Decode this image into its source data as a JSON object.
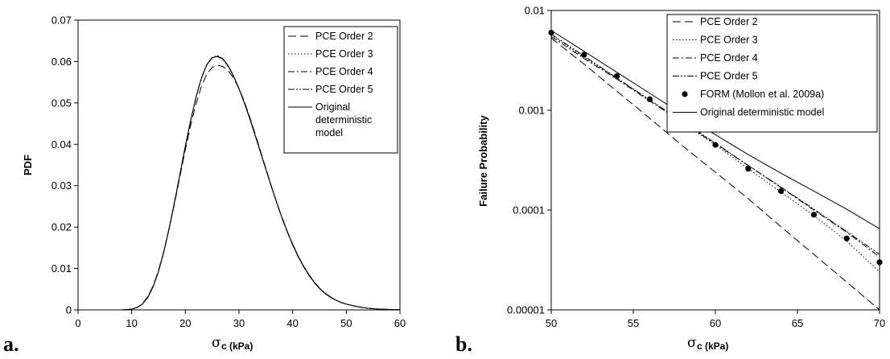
{
  "chart_data": [
    {
      "type": "line",
      "panel_label": "a.",
      "xlabel": "σ",
      "xlabel_sub": "c (kPa)",
      "ylabel": "PDF",
      "xlim": [
        0,
        60
      ],
      "ylim": [
        0,
        0.07
      ],
      "x_ticks": [
        "0",
        "10",
        "20",
        "30",
        "40",
        "50",
        "60"
      ],
      "y_ticks": [
        "0",
        "0.01",
        "0.02",
        "0.03",
        "0.04",
        "0.05",
        "0.06",
        "0.07"
      ],
      "grid": false,
      "legend_position": "top-right",
      "legend_last_lines": [
        "Original",
        "deterministic",
        "model"
      ],
      "x": [
        8,
        9,
        10,
        11,
        12,
        13,
        14,
        15,
        16,
        17,
        18,
        19,
        20,
        21,
        22,
        23,
        24,
        25,
        26,
        27,
        28,
        29,
        30,
        31,
        32,
        33,
        34,
        35,
        36,
        37,
        38,
        39,
        40,
        41,
        42,
        43,
        44,
        45,
        46,
        47,
        48,
        49,
        50,
        52,
        54,
        56,
        58,
        60
      ],
      "series": [
        {
          "name": "PCE Order 2",
          "style": "long-dash",
          "values": [
            0,
            5e-05,
            0.0002,
            0.0006,
            0.0015,
            0.0032,
            0.0058,
            0.0095,
            0.0142,
            0.0197,
            0.0258,
            0.0323,
            0.0387,
            0.0446,
            0.0498,
            0.054,
            0.057,
            0.0586,
            0.0591,
            0.0588,
            0.0578,
            0.056,
            0.0535,
            0.0503,
            0.0466,
            0.0426,
            0.0384,
            0.0342,
            0.03,
            0.026,
            0.0222,
            0.0188,
            0.0157,
            0.0129,
            0.0105,
            0.0084,
            0.0066,
            0.0052,
            0.004,
            0.0031,
            0.0024,
            0.0018,
            0.0014,
            0.0008,
            0.0004,
            0.0002,
            0.0001,
            5e-05
          ]
        },
        {
          "name": "PCE Order 3",
          "style": "dotted",
          "values": [
            0,
            5e-05,
            0.0002,
            0.0006,
            0.0014,
            0.0031,
            0.0057,
            0.0094,
            0.0142,
            0.0199,
            0.0262,
            0.0329,
            0.0396,
            0.0459,
            0.0515,
            0.0561,
            0.0593,
            0.061,
            0.0613,
            0.0606,
            0.0589,
            0.0565,
            0.0535,
            0.0501,
            0.0463,
            0.0423,
            0.0382,
            0.0341,
            0.03,
            0.0261,
            0.0224,
            0.019,
            0.0159,
            0.0131,
            0.0107,
            0.0086,
            0.0068,
            0.0053,
            0.0041,
            0.0032,
            0.0024,
            0.0018,
            0.0014,
            0.0008,
            0.0004,
            0.0002,
            0.0001,
            5e-05
          ]
        },
        {
          "name": "PCE Order 4",
          "style": "dash-dot",
          "values": [
            0,
            5e-05,
            0.0002,
            0.0006,
            0.0014,
            0.003,
            0.0056,
            0.0093,
            0.0141,
            0.0198,
            0.0261,
            0.0328,
            0.0395,
            0.0458,
            0.0514,
            0.056,
            0.0592,
            0.0609,
            0.0612,
            0.0605,
            0.0588,
            0.0564,
            0.0534,
            0.05,
            0.0462,
            0.0422,
            0.0381,
            0.034,
            0.0299,
            0.026,
            0.0223,
            0.0189,
            0.0158,
            0.013,
            0.0106,
            0.0085,
            0.0067,
            0.0052,
            0.004,
            0.0031,
            0.0024,
            0.0018,
            0.0014,
            0.0008,
            0.0004,
            0.0002,
            0.0001,
            5e-05
          ]
        },
        {
          "name": "PCE Order 5",
          "style": "dash-dot-dot",
          "values": [
            0,
            5e-05,
            0.0002,
            0.0006,
            0.0014,
            0.0031,
            0.0057,
            0.0094,
            0.0142,
            0.0199,
            0.0262,
            0.0329,
            0.0396,
            0.0459,
            0.0515,
            0.0561,
            0.0593,
            0.061,
            0.0614,
            0.0607,
            0.059,
            0.0565,
            0.0535,
            0.0501,
            0.0463,
            0.0423,
            0.0382,
            0.0341,
            0.03,
            0.0261,
            0.0224,
            0.019,
            0.0159,
            0.0131,
            0.0107,
            0.0086,
            0.0068,
            0.0053,
            0.0041,
            0.0032,
            0.0024,
            0.0018,
            0.0014,
            0.0008,
            0.0004,
            0.0002,
            0.0001,
            5e-05
          ]
        },
        {
          "name": "Original deterministic model",
          "style": "solid",
          "values": [
            0,
            5e-05,
            0.0002,
            0.0006,
            0.0014,
            0.003,
            0.0056,
            0.0093,
            0.0141,
            0.0198,
            0.0261,
            0.0328,
            0.0395,
            0.0458,
            0.0514,
            0.056,
            0.0592,
            0.0609,
            0.0613,
            0.0606,
            0.0589,
            0.0564,
            0.0534,
            0.05,
            0.0462,
            0.0422,
            0.0381,
            0.034,
            0.0299,
            0.026,
            0.0223,
            0.0189,
            0.0158,
            0.013,
            0.0106,
            0.0085,
            0.0067,
            0.0052,
            0.004,
            0.0031,
            0.0024,
            0.0018,
            0.0014,
            0.0008,
            0.0004,
            0.0002,
            0.0001,
            5e-05
          ]
        }
      ]
    },
    {
      "type": "line",
      "panel_label": "b.",
      "xlabel": "σ",
      "xlabel_sub": "c (kPa)",
      "ylabel": "Failure Probability",
      "xlim": [
        50,
        70
      ],
      "ylim": [
        1e-05,
        0.01
      ],
      "y_scale": "log",
      "x_ticks": [
        "50",
        "55",
        "60",
        "65",
        "70"
      ],
      "y_ticks": [
        "0.00001",
        "0.0001",
        "0.001",
        "0.01"
      ],
      "grid": false,
      "legend_position": "top-right",
      "x": [
        50,
        52,
        54,
        56,
        58,
        60,
        62,
        64,
        66,
        68,
        70
      ],
      "series": [
        {
          "name": "PCE Order 2",
          "style": "long-dash",
          "values": [
            0.0053,
            0.0029,
            0.00155,
            0.00083,
            0.00044,
            0.00024,
            0.00013,
            6.8e-05,
            3.6e-05,
            1.9e-05,
            7.5e-06
          ]
        },
        {
          "name": "PCE Order 3",
          "style": "dotted",
          "values": [
            0.0057,
            0.0034,
            0.0021,
            0.00125,
            0.00075,
            0.00045,
            0.00026,
            0.000152,
            8.8e-05,
            4.9e-05,
            2.4e-05
          ]
        },
        {
          "name": "PCE Order 4",
          "style": "dash-dot",
          "values": [
            0.0055,
            0.0033,
            0.00205,
            0.00124,
            0.00076,
            0.00046,
            0.00028,
            0.000168,
            0.0001,
            6e-05,
            3.4e-05
          ]
        },
        {
          "name": "PCE Order 5",
          "style": "dash-dot-dot",
          "values": [
            0.0058,
            0.0035,
            0.0021,
            0.00127,
            0.00077,
            0.00047,
            0.00028,
            0.00017,
            0.000102,
            6.1e-05,
            3.6e-05
          ]
        },
        {
          "name": "FORM (Mollon et al. 2009a)",
          "style": "markers",
          "values": [
            0.006,
            0.0036,
            0.0022,
            0.00129,
            0.00076,
            0.00045,
            0.00026,
            0.000155,
            9e-05,
            5.2e-05,
            3e-05
          ]
        },
        {
          "name": "Original deterministic model",
          "style": "solid",
          "values": [
            0.0063,
            0.0039,
            0.0024,
            0.00148,
            0.00091,
            0.00057,
            0.00036,
            0.000234,
            0.000155,
            0.000102,
            6.5e-05
          ]
        }
      ]
    }
  ]
}
